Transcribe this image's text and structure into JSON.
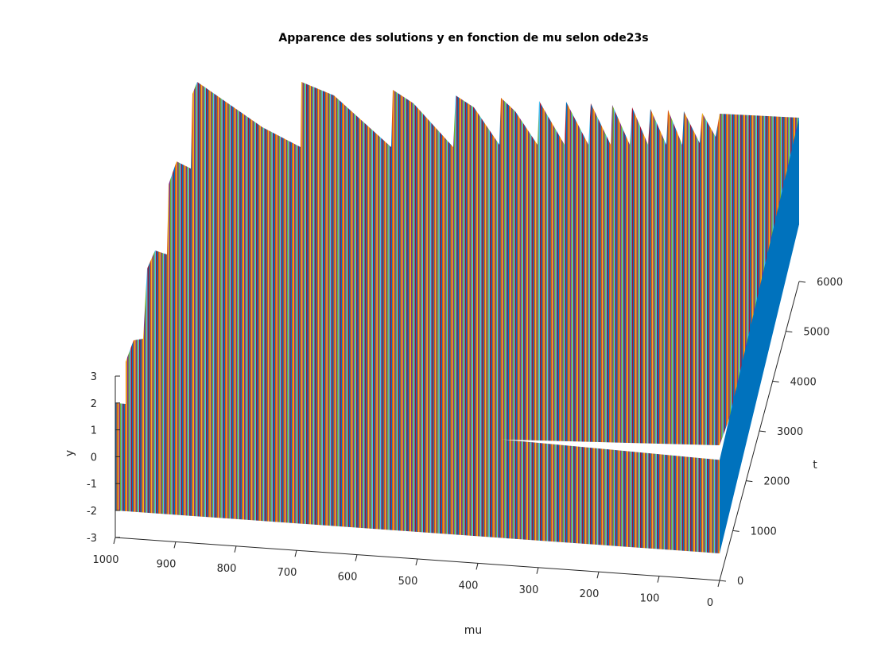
{
  "figure": {
    "title": "Apparence des solutions y en fonction de mu selon ode23s"
  },
  "chart_data": {
    "type": "surface",
    "title": "Apparence des solutions y en fonction de mu selon ode23s",
    "xlabel": "mu",
    "ylabel": "t",
    "zlabel": "y",
    "xlim": [
      0,
      1000
    ],
    "ylim": [
      0,
      6000
    ],
    "zlim": [
      -3,
      3
    ],
    "x_ticks": [
      0,
      100,
      200,
      300,
      400,
      500,
      600,
      700,
      800,
      900,
      1000
    ],
    "x_tick_labels": [
      "0",
      "100",
      "200",
      "300",
      "400",
      "500",
      "600",
      "700",
      "800",
      "900",
      "1000"
    ],
    "y_ticks": [
      0,
      1000,
      2000,
      3000,
      4000,
      5000,
      6000
    ],
    "y_tick_labels": [
      "0",
      "1000",
      "2000",
      "3000",
      "4000",
      "5000",
      "6000"
    ],
    "z_ticks": [
      -3,
      -2,
      -1,
      0,
      1,
      2,
      3
    ],
    "z_tick_labels": [
      "-3",
      "-2",
      "-1",
      "0",
      "1",
      "2",
      "3"
    ],
    "grid": false,
    "series_description": "Van der Pol solution y(t) for each mu; relaxation oscillations between about -2 and 2",
    "approx_peak_value": 2,
    "approx_trough_value": -2,
    "wall_color": "#0072bd",
    "line_colors": [
      "#0072bd",
      "#d95319",
      "#edb120",
      "#7e2f8e",
      "#77ac30",
      "#4dbeee",
      "#a2142f"
    ]
  }
}
